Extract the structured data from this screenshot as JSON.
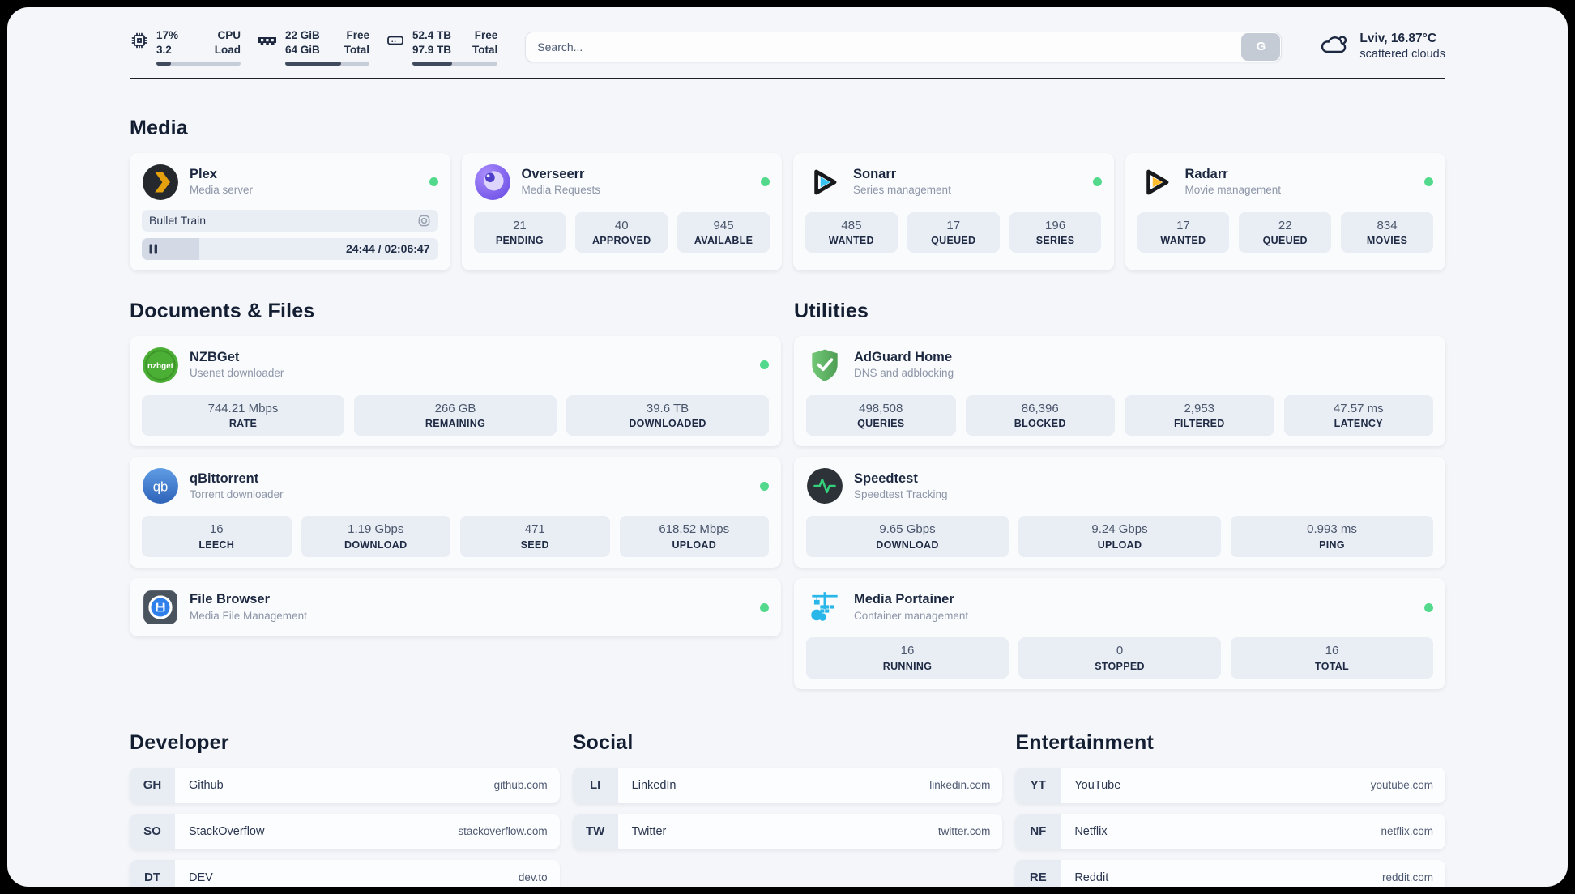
{
  "header": {
    "stats": [
      {
        "name": "cpu",
        "values": [
          "17%",
          "3.2"
        ],
        "labels": [
          "CPU",
          "Load"
        ],
        "progress_pct": 17
      },
      {
        "name": "memory",
        "values": [
          "22 GiB",
          "64 GiB"
        ],
        "labels": [
          "Free",
          "Total"
        ],
        "progress_pct": 66
      },
      {
        "name": "disk",
        "values": [
          "52.4 TB",
          "97.9 TB"
        ],
        "labels": [
          "Free",
          "Total"
        ],
        "progress_pct": 47
      }
    ],
    "search": {
      "placeholder": "Search...",
      "button": "G"
    },
    "weather": {
      "location": "Lviv, 16.87°C",
      "condition": "scattered clouds"
    }
  },
  "media": {
    "title": "Media",
    "plex": {
      "name": "Plex",
      "subtitle": "Media server",
      "status": "online",
      "now_playing": "Bullet Train",
      "time": "24:44 / 02:06:47",
      "progress_pct": 19.5
    },
    "overseerr": {
      "name": "Overseerr",
      "subtitle": "Media Requests",
      "status": "online",
      "stats": [
        {
          "value": "21",
          "label": "PENDING"
        },
        {
          "value": "40",
          "label": "APPROVED"
        },
        {
          "value": "945",
          "label": "AVAILABLE"
        }
      ]
    },
    "sonarr": {
      "name": "Sonarr",
      "subtitle": "Series management",
      "status": "online",
      "stats": [
        {
          "value": "485",
          "label": "WANTED"
        },
        {
          "value": "17",
          "label": "QUEUED"
        },
        {
          "value": "196",
          "label": "SERIES"
        }
      ]
    },
    "radarr": {
      "name": "Radarr",
      "subtitle": "Movie management",
      "status": "online",
      "stats": [
        {
          "value": "17",
          "label": "WANTED"
        },
        {
          "value": "22",
          "label": "QUEUED"
        },
        {
          "value": "834",
          "label": "MOVIES"
        }
      ]
    }
  },
  "documents": {
    "title": "Documents & Files",
    "nzbget": {
      "name": "NZBGet",
      "subtitle": "Usenet downloader",
      "status": "online",
      "stats": [
        {
          "value": "744.21 Mbps",
          "label": "RATE"
        },
        {
          "value": "266 GB",
          "label": "REMAINING"
        },
        {
          "value": "39.6 TB",
          "label": "DOWNLOADED"
        }
      ]
    },
    "qbittorrent": {
      "name": "qBittorrent",
      "subtitle": "Torrent downloader",
      "status": "online",
      "stats": [
        {
          "value": "16",
          "label": "LEECH"
        },
        {
          "value": "1.19 Gbps",
          "label": "DOWNLOAD"
        },
        {
          "value": "471",
          "label": "SEED"
        },
        {
          "value": "618.52 Mbps",
          "label": "UPLOAD"
        }
      ]
    },
    "filebrowser": {
      "name": "File Browser",
      "subtitle": "Media File Management",
      "status": "online"
    }
  },
  "utilities": {
    "title": "Utilities",
    "adguard": {
      "name": "AdGuard Home",
      "subtitle": "DNS and adblocking",
      "stats": [
        {
          "value": "498,508",
          "label": "QUERIES"
        },
        {
          "value": "86,396",
          "label": "BLOCKED"
        },
        {
          "value": "2,953",
          "label": "FILTERED"
        },
        {
          "value": "47.57 ms",
          "label": "LATENCY"
        }
      ]
    },
    "speedtest": {
      "name": "Speedtest",
      "subtitle": "Speedtest Tracking",
      "stats": [
        {
          "value": "9.65 Gbps",
          "label": "DOWNLOAD"
        },
        {
          "value": "9.24 Gbps",
          "label": "UPLOAD"
        },
        {
          "value": "0.993 ms",
          "label": "PING"
        }
      ]
    },
    "portainer": {
      "name": "Media Portainer",
      "subtitle": "Container management",
      "status": "online",
      "stats": [
        {
          "value": "16",
          "label": "RUNNING"
        },
        {
          "value": "0",
          "label": "STOPPED"
        },
        {
          "value": "16",
          "label": "TOTAL"
        }
      ]
    }
  },
  "bookmarks": {
    "developer": {
      "title": "Developer",
      "links": [
        {
          "abbr": "GH",
          "name": "Github",
          "url": "github.com"
        },
        {
          "abbr": "SO",
          "name": "StackOverflow",
          "url": "stackoverflow.com"
        },
        {
          "abbr": "DT",
          "name": "DEV",
          "url": "dev.to"
        }
      ]
    },
    "social": {
      "title": "Social",
      "links": [
        {
          "abbr": "LI",
          "name": "LinkedIn",
          "url": "linkedin.com"
        },
        {
          "abbr": "TW",
          "name": "Twitter",
          "url": "twitter.com"
        }
      ]
    },
    "entertainment": {
      "title": "Entertainment",
      "links": [
        {
          "abbr": "YT",
          "name": "YouTube",
          "url": "youtube.com"
        },
        {
          "abbr": "NF",
          "name": "Netflix",
          "url": "netflix.com"
        },
        {
          "abbr": "RE",
          "name": "Reddit",
          "url": "reddit.com"
        }
      ]
    }
  },
  "colors": {
    "status_online": "#53d98c",
    "plex_accent": "#e5a00d",
    "sonarr_accent": "#36c3f1",
    "radarr_accent": "#ffbb2a",
    "nzbget_green": "#4caf35",
    "qbittorrent_blue": "#3e7fd9",
    "adguard_green": "#5cb961",
    "speedtest_pulse": "#35d07c",
    "portainer_blue": "#29b6e8"
  }
}
